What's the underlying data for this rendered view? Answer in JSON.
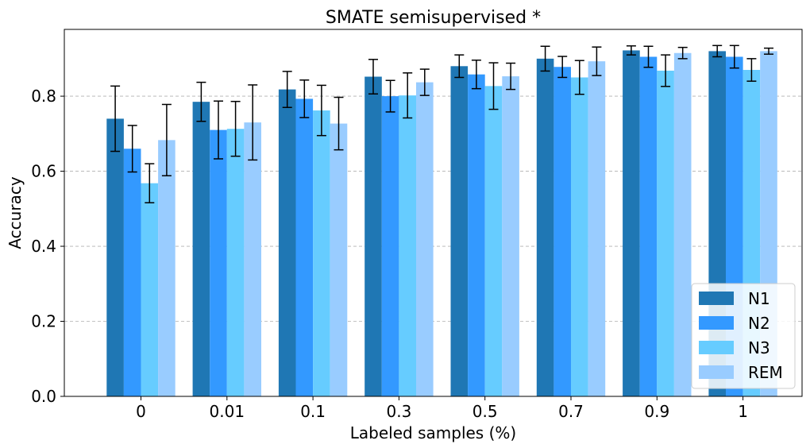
{
  "chart_data": {
    "type": "bar",
    "title": "SMATE semisupervised *",
    "xlabel": "Labeled samples (%)",
    "ylabel": "Accuracy",
    "categories": [
      "0",
      "0.01",
      "0.1",
      "0.3",
      "0.5",
      "0.7",
      "0.9",
      "1"
    ],
    "ylim": [
      0,
      0.978
    ],
    "yticks": [
      "0.0",
      "0.2",
      "0.4",
      "0.6",
      "0.8"
    ],
    "grid": "horizontal dashed",
    "legend_position": "bottom-right",
    "series": [
      {
        "name": "N1",
        "color": "#1f77b4",
        "values": [
          0.74,
          0.785,
          0.818,
          0.852,
          0.88,
          0.9,
          0.922,
          0.92
        ],
        "errors": [
          0.087,
          0.052,
          0.048,
          0.046,
          0.03,
          0.033,
          0.012,
          0.015
        ]
      },
      {
        "name": "N2",
        "color": "#3399ff",
        "values": [
          0.66,
          0.71,
          0.793,
          0.8,
          0.858,
          0.878,
          0.905,
          0.905
        ],
        "errors": [
          0.062,
          0.077,
          0.05,
          0.042,
          0.038,
          0.028,
          0.028,
          0.03
        ]
      },
      {
        "name": "N3",
        "color": "#66ccff",
        "values": [
          0.568,
          0.713,
          0.762,
          0.802,
          0.827,
          0.85,
          0.868,
          0.87
        ],
        "errors": [
          0.052,
          0.073,
          0.067,
          0.06,
          0.062,
          0.045,
          0.042,
          0.03
        ]
      },
      {
        "name": "REM",
        "color": "#99ccff",
        "values": [
          0.683,
          0.73,
          0.727,
          0.837,
          0.853,
          0.893,
          0.915,
          0.92
        ],
        "errors": [
          0.095,
          0.1,
          0.07,
          0.035,
          0.035,
          0.038,
          0.015,
          0.008
        ]
      }
    ]
  }
}
